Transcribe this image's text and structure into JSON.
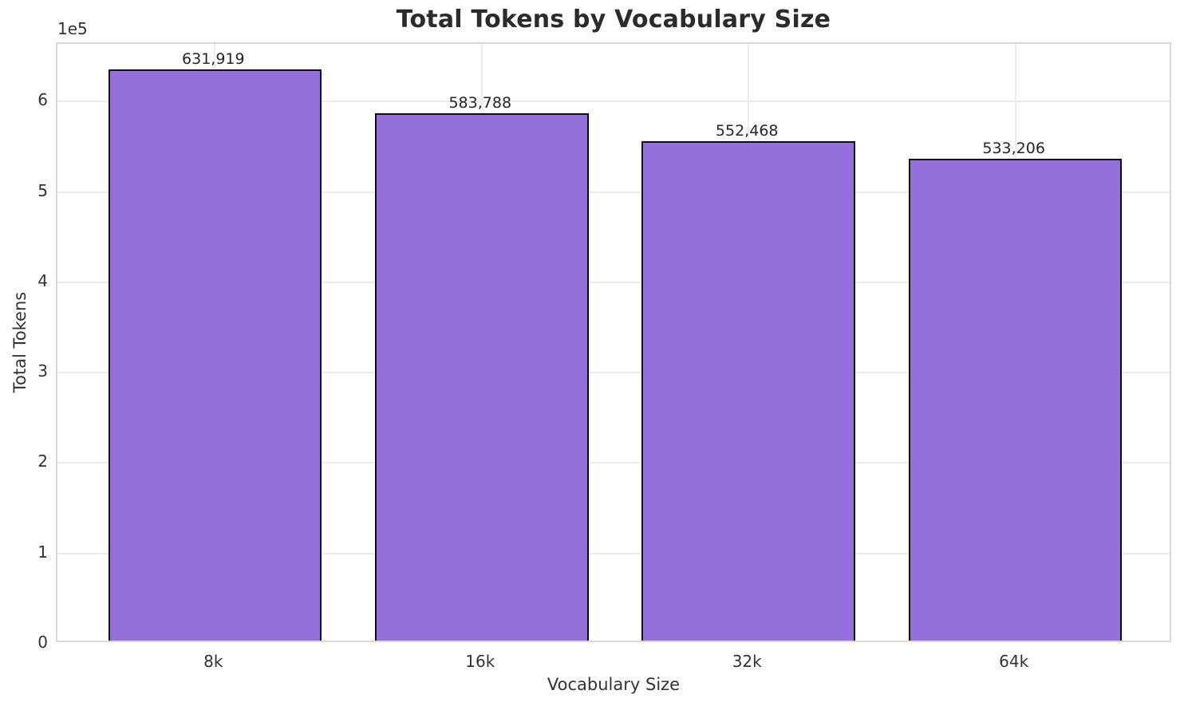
{
  "chart_data": {
    "type": "bar",
    "title": "Total Tokens by Vocabulary Size",
    "xlabel": "Vocabulary Size",
    "ylabel": "Total Tokens",
    "categories": [
      "8k",
      "16k",
      "32k",
      "64k"
    ],
    "values": [
      631919,
      583788,
      552468,
      533206
    ],
    "value_labels": [
      "631,919",
      "583,788",
      "552,468",
      "533,206"
    ],
    "yticks": [
      0,
      1,
      2,
      3,
      4,
      5,
      6
    ],
    "ytick_labels": [
      "0",
      "1",
      "2",
      "3",
      "4",
      "5",
      "6"
    ],
    "ytick_unit": 100000,
    "offset_text": "1e5",
    "ylim": [
      0,
      664000
    ],
    "xlim": [
      -0.59,
      3.59
    ],
    "bar_width_frac": 0.8,
    "grid": true,
    "legend": null,
    "colors": {
      "bar_fill": "#9370DB",
      "bar_edge": "#0d0d0d",
      "grid": "#ececec",
      "spine": "#d9d9d9",
      "title_text": "#2b2b2b",
      "tick_text": "#333333",
      "background": "#ffffff"
    }
  }
}
